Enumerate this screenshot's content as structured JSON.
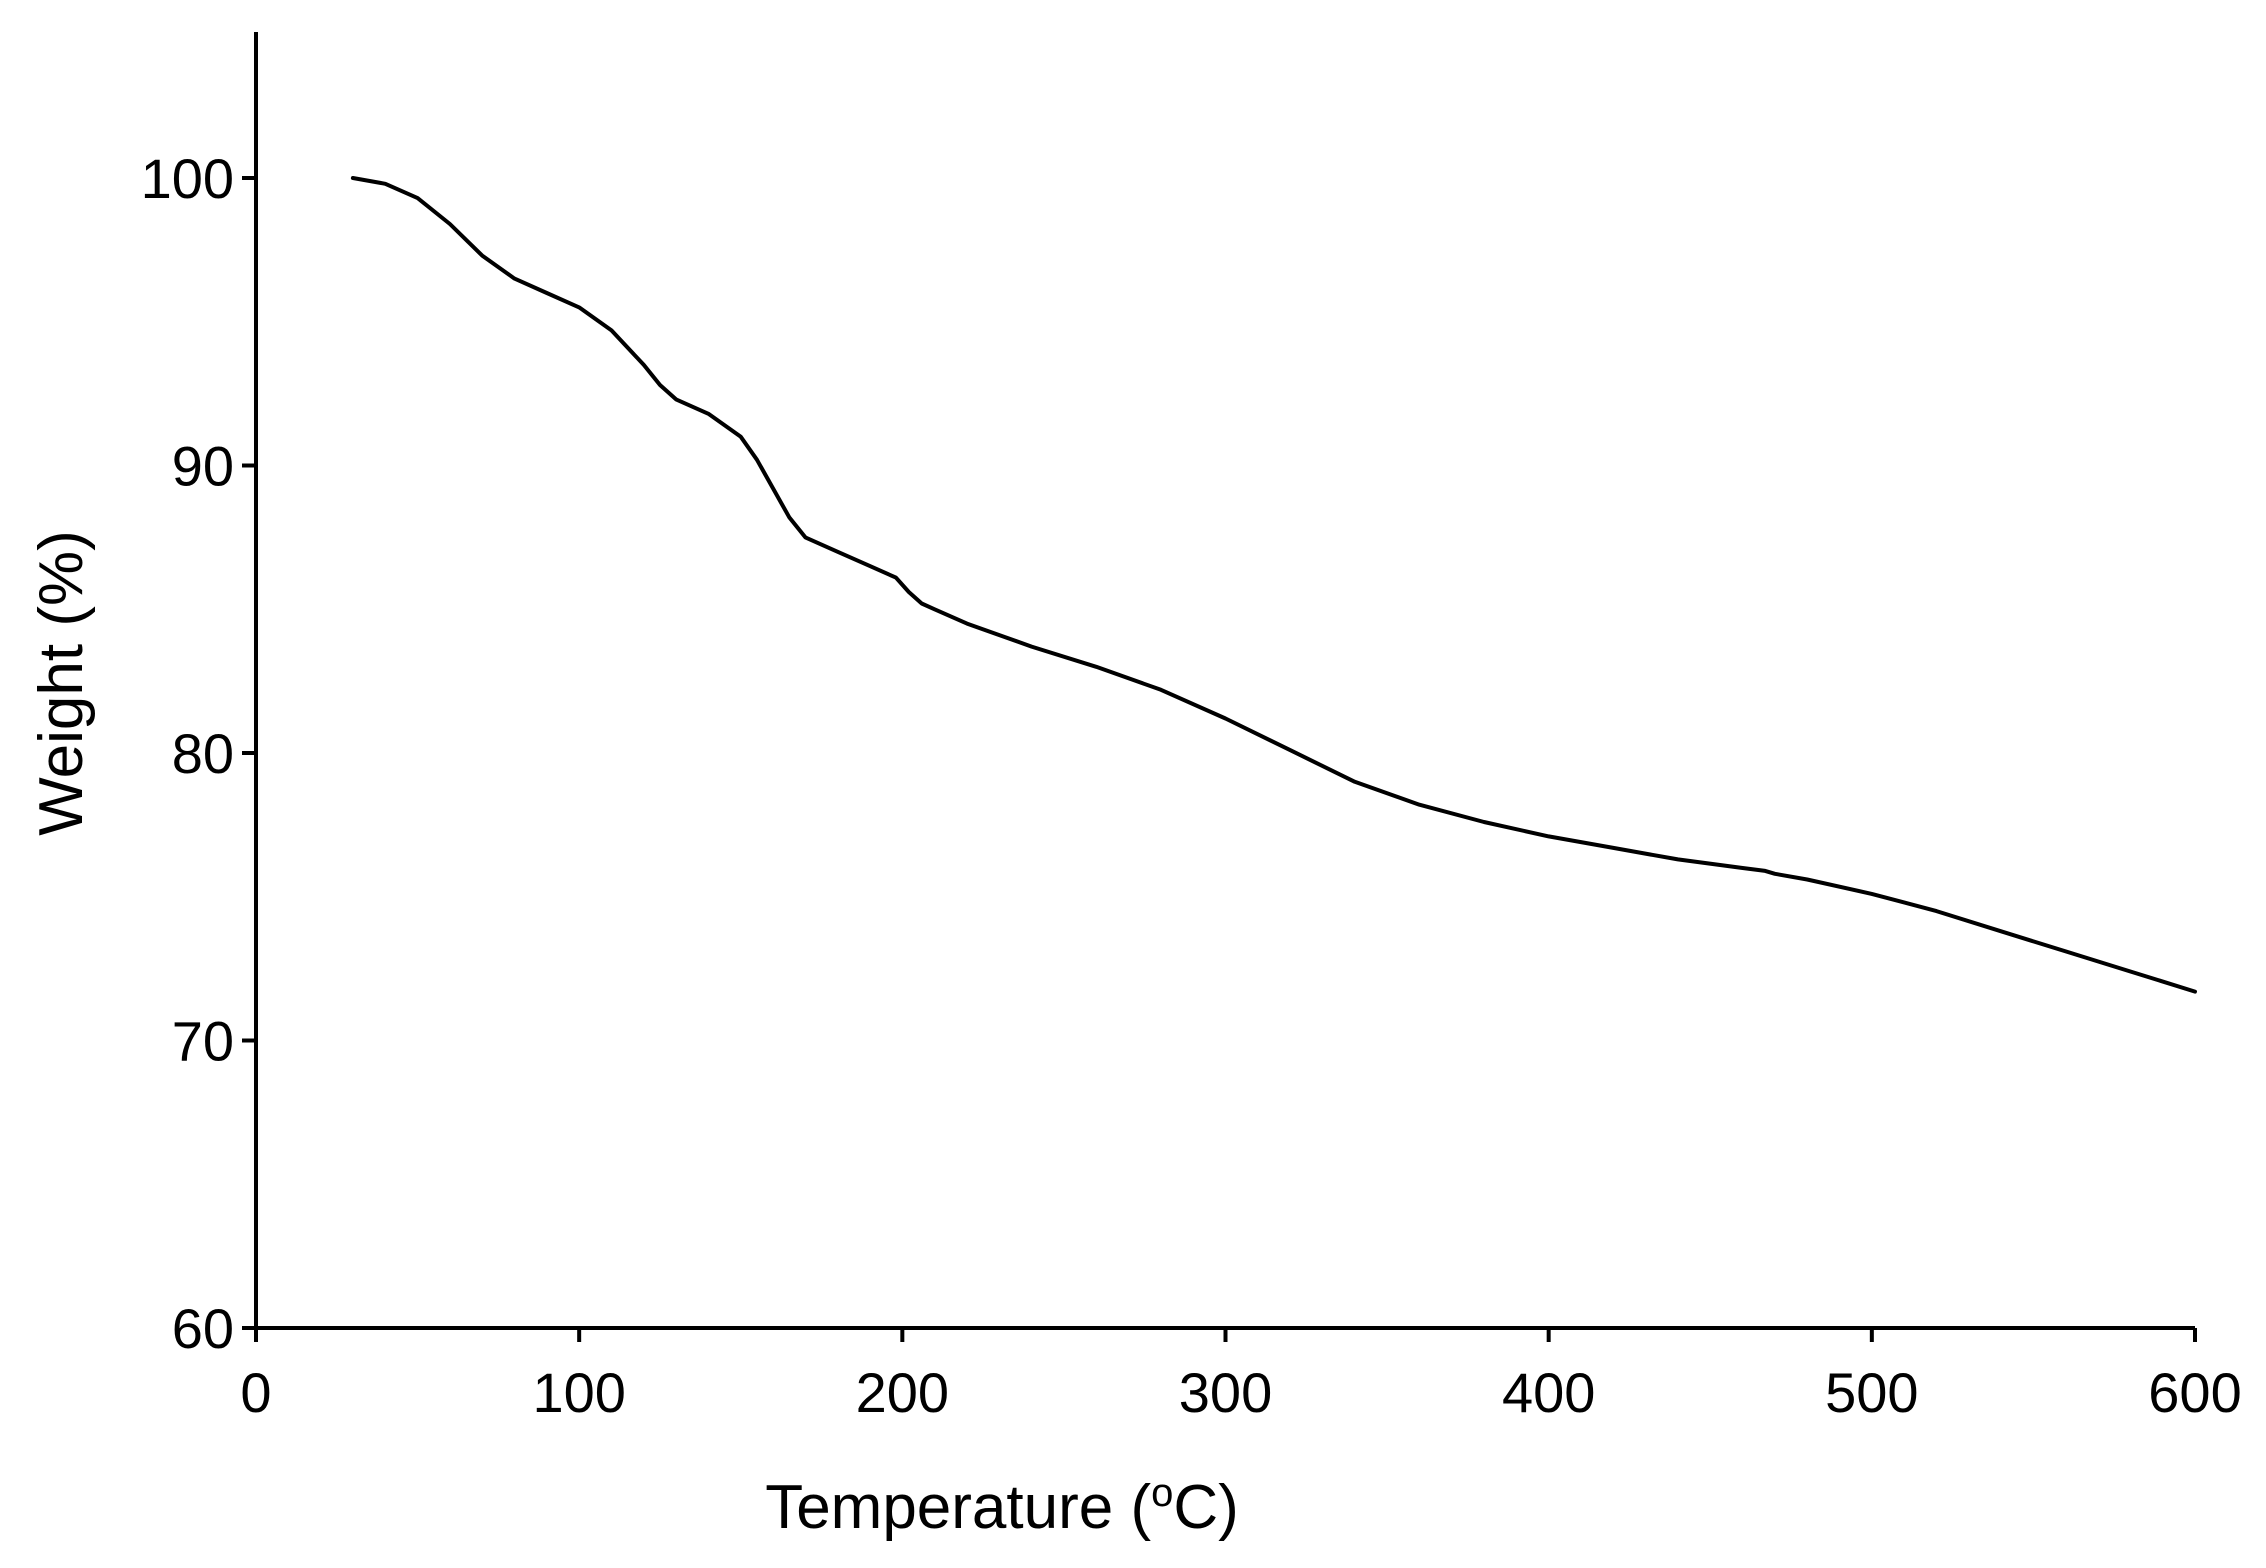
{
  "chart_data": {
    "type": "line",
    "title": "",
    "xlabel": {
      "text": "Temperature (",
      "sup": "o",
      "tail": "C)"
    },
    "ylabel": "Weight (%)",
    "xlim": [
      0,
      600
    ],
    "ylim": [
      60,
      105
    ],
    "xticks": [
      0,
      100,
      200,
      300,
      400,
      500,
      600
    ],
    "yticks": [
      60,
      70,
      80,
      90,
      100
    ],
    "grid": false,
    "legend": "none",
    "series": [
      {
        "color": "#000000",
        "x": [
          30,
          40,
          50,
          60,
          70,
          80,
          90,
          100,
          110,
          120,
          125,
          130,
          140,
          150,
          155,
          160,
          165,
          170,
          180,
          190,
          198,
          202,
          206,
          210,
          220,
          240,
          260,
          280,
          300,
          320,
          340,
          360,
          380,
          400,
          420,
          440,
          460,
          467,
          470,
          480,
          500,
          520,
          540,
          560,
          580,
          600
        ],
        "y": [
          100.0,
          99.8,
          99.3,
          98.4,
          97.3,
          96.5,
          96.0,
          95.5,
          94.7,
          93.5,
          92.8,
          92.3,
          91.8,
          91.0,
          90.2,
          89.2,
          88.2,
          87.5,
          87.0,
          86.5,
          86.1,
          85.6,
          85.2,
          85.0,
          84.5,
          83.7,
          83.0,
          82.2,
          81.2,
          80.1,
          79.0,
          78.2,
          77.6,
          77.1,
          76.7,
          76.3,
          76.0,
          75.9,
          75.8,
          75.6,
          75.1,
          74.5,
          73.8,
          73.1,
          72.4,
          71.7
        ]
      }
    ]
  }
}
